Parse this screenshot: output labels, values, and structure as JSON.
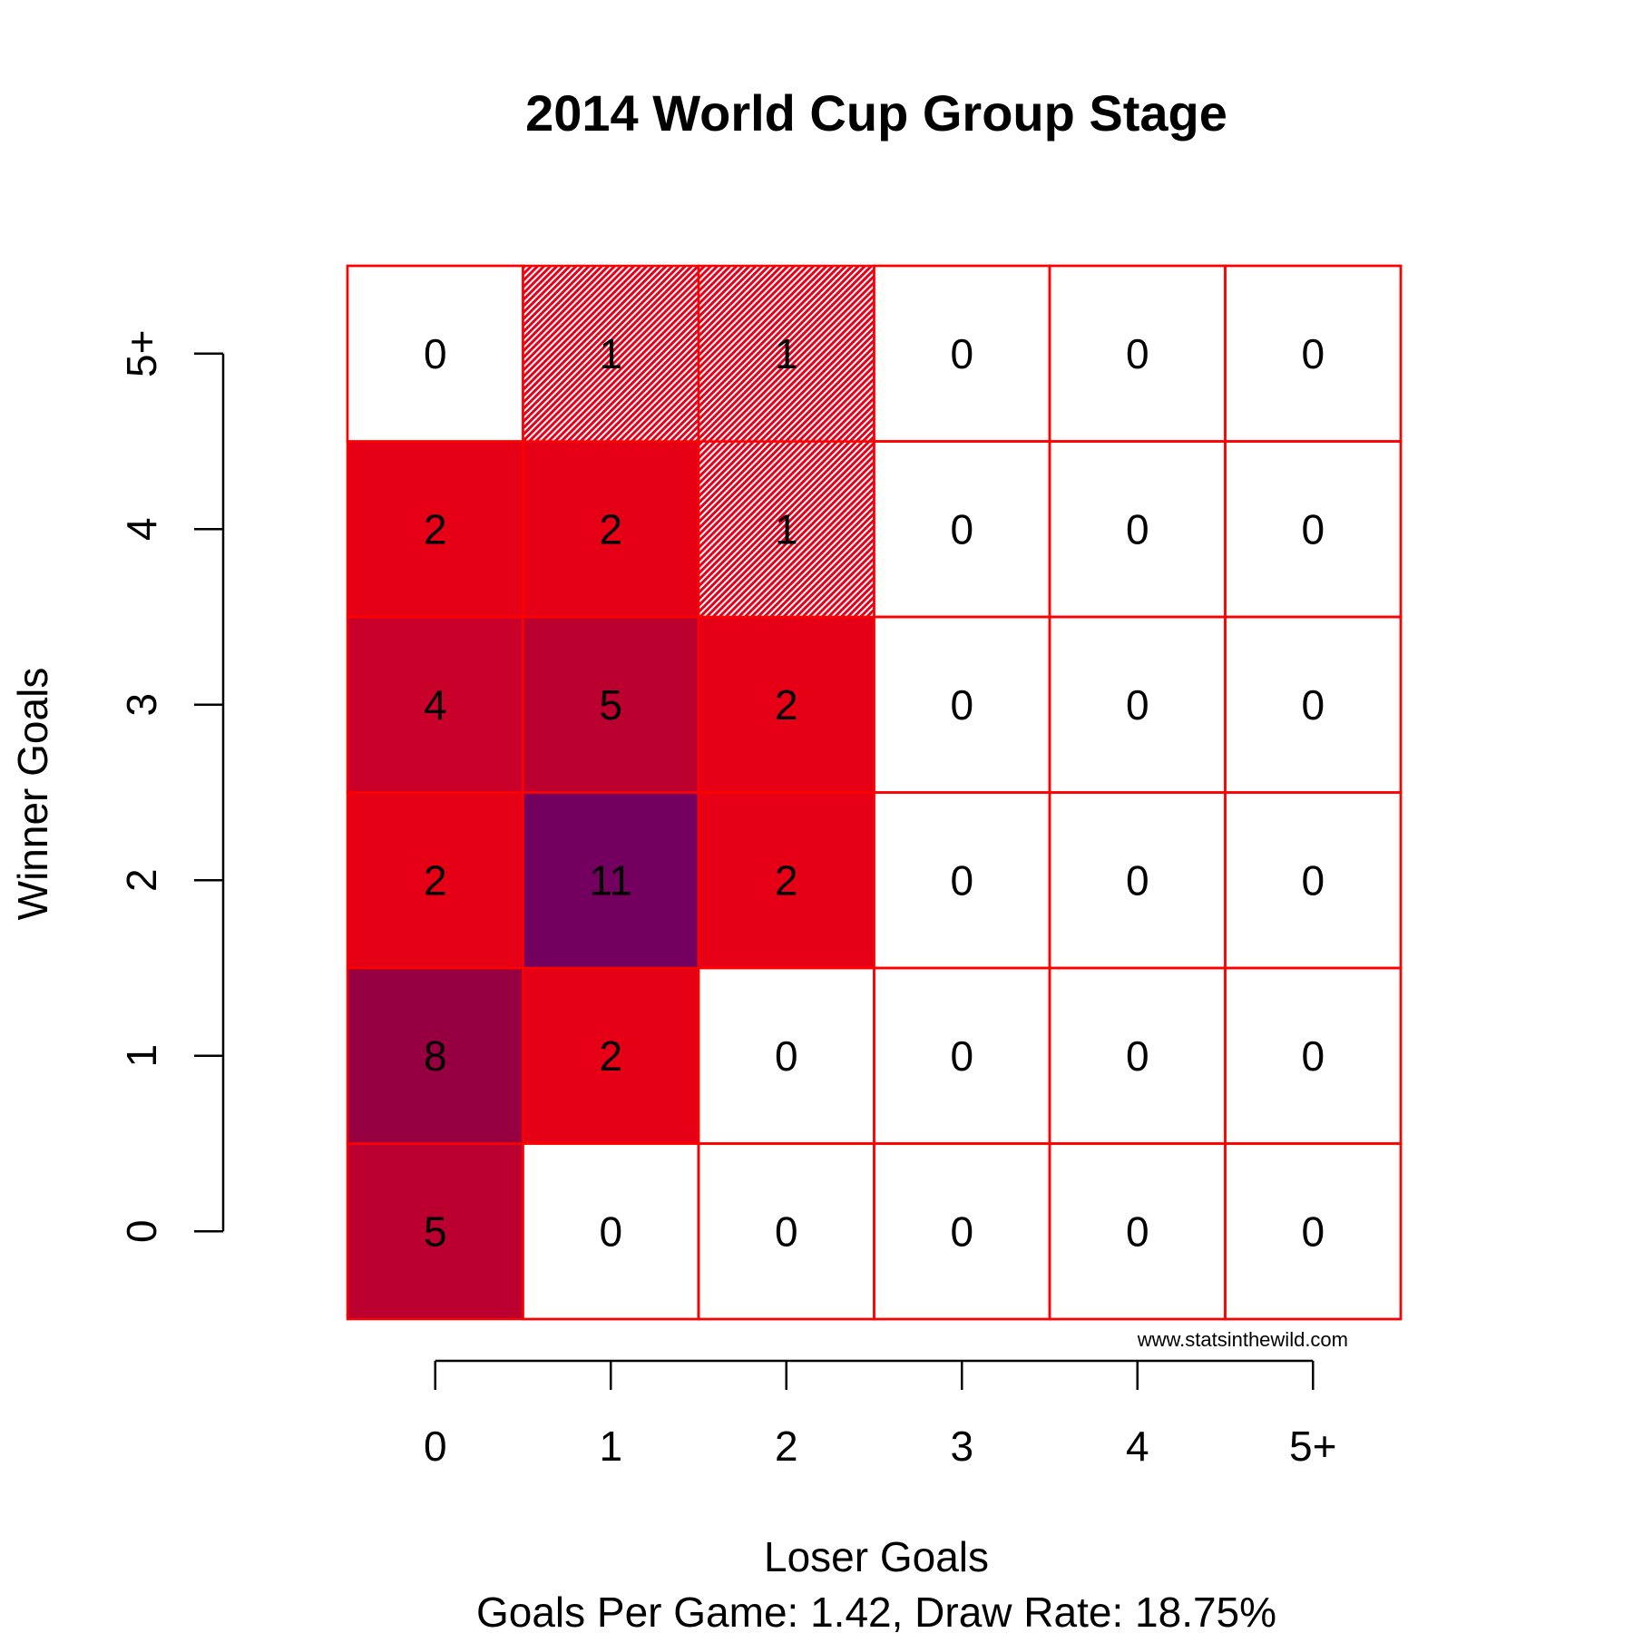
{
  "chart_data": {
    "type": "heatmap",
    "title": "2014 World Cup Group Stage",
    "xlabel": "Loser Goals",
    "ylabel": "Winner Goals",
    "subtitle": "Goals Per Game: 1.42, Draw Rate: 18.75%",
    "watermark": "www.statsinthewild.com",
    "x_categories": [
      "0",
      "1",
      "2",
      "3",
      "4",
      "5+"
    ],
    "y_categories": [
      "0",
      "1",
      "2",
      "3",
      "4",
      "5+"
    ],
    "values": [
      [
        5,
        0,
        0,
        0,
        0,
        0
      ],
      [
        8,
        2,
        0,
        0,
        0,
        0
      ],
      [
        2,
        11,
        2,
        0,
        0,
        0
      ],
      [
        4,
        5,
        2,
        0,
        0,
        0
      ],
      [
        2,
        2,
        1,
        0,
        0,
        0
      ],
      [
        0,
        1,
        1,
        0,
        0,
        0
      ]
    ],
    "colors": {
      "0": "#ffffff",
      "1": "#e6001a",
      "2": "#e60016",
      "4": "#c9002a",
      "5": "#bb002f",
      "8": "#970040",
      "11": "#73005e",
      "border": "#ff0000"
    },
    "hatched_value": 1,
    "grid": true
  }
}
